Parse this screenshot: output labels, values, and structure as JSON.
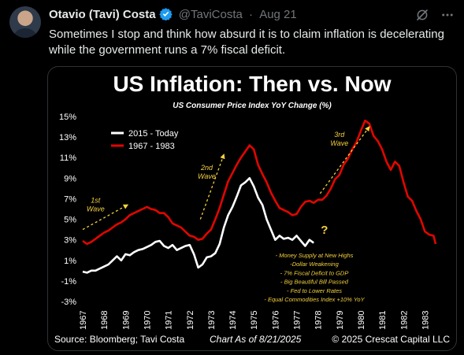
{
  "tweet": {
    "author_name": "Otavio (Tavi) Costa",
    "handle": "@TaviCosta",
    "separator": "·",
    "date": "Aug 21",
    "text": "Sometimes I stop and think how absurd it is to claim inflation is decelerating while the government runs a 7% fiscal deficit."
  },
  "colors": {
    "background": "#000000",
    "accent_blue": "#1d9bf0",
    "muted": "#71767b",
    "series_red": "#e10600",
    "series_white": "#ffffff",
    "annotation_yellow": "#f4d03f"
  },
  "icons": [
    "verified-badge-icon",
    "grok-icon",
    "more-icon"
  ],
  "chart_data": {
    "type": "line",
    "title": "US Inflation: Then vs. Now",
    "subtitle": "US Consumer Price Index YoY Change (%)",
    "y_tick_labels": [
      "15%",
      "13%",
      "11%",
      "9%",
      "7%",
      "5%",
      "3%",
      "1%",
      "-1%",
      "-3%"
    ],
    "ylim": [
      -3,
      15
    ],
    "x_tick_labels": [
      "1967",
      "1968",
      "1969",
      "1970",
      "1971",
      "1972",
      "1973",
      "1974",
      "1975",
      "1976",
      "1977",
      "1978",
      "1979",
      "1980",
      "1981",
      "1982",
      "1983"
    ],
    "xlim": [
      1967,
      1983.5
    ],
    "grid": false,
    "legend_position": "top-left",
    "series": [
      {
        "name": "1967 - 1983",
        "color": "#e10600",
        "points": [
          [
            1967.0,
            2.9
          ],
          [
            1967.2,
            2.6
          ],
          [
            1967.4,
            2.8
          ],
          [
            1967.6,
            3.1
          ],
          [
            1967.8,
            3.4
          ],
          [
            1968.0,
            3.7
          ],
          [
            1968.2,
            3.9
          ],
          [
            1968.4,
            4.2
          ],
          [
            1968.6,
            4.5
          ],
          [
            1968.8,
            4.7
          ],
          [
            1969.0,
            5.0
          ],
          [
            1969.2,
            5.4
          ],
          [
            1969.4,
            5.6
          ],
          [
            1969.6,
            5.8
          ],
          [
            1969.8,
            6.0
          ],
          [
            1970.0,
            6.2
          ],
          [
            1970.2,
            6.0
          ],
          [
            1970.4,
            5.9
          ],
          [
            1970.6,
            5.6
          ],
          [
            1970.8,
            5.6
          ],
          [
            1971.0,
            5.2
          ],
          [
            1971.2,
            4.6
          ],
          [
            1971.4,
            4.4
          ],
          [
            1971.6,
            4.2
          ],
          [
            1971.8,
            3.8
          ],
          [
            1972.0,
            3.4
          ],
          [
            1972.2,
            3.3
          ],
          [
            1972.4,
            3.0
          ],
          [
            1972.6,
            3.1
          ],
          [
            1972.8,
            3.6
          ],
          [
            1973.0,
            4.0
          ],
          [
            1973.2,
            5.0
          ],
          [
            1973.4,
            6.1
          ],
          [
            1973.6,
            7.4
          ],
          [
            1973.8,
            8.7
          ],
          [
            1974.0,
            9.5
          ],
          [
            1974.2,
            10.3
          ],
          [
            1974.4,
            11.0
          ],
          [
            1974.6,
            11.6
          ],
          [
            1974.8,
            12.2
          ],
          [
            1975.0,
            11.8
          ],
          [
            1975.2,
            10.3
          ],
          [
            1975.4,
            9.4
          ],
          [
            1975.6,
            8.6
          ],
          [
            1975.8,
            7.6
          ],
          [
            1976.0,
            6.8
          ],
          [
            1976.2,
            6.1
          ],
          [
            1976.4,
            5.9
          ],
          [
            1976.6,
            5.7
          ],
          [
            1976.8,
            5.4
          ],
          [
            1977.0,
            5.5
          ],
          [
            1977.2,
            6.2
          ],
          [
            1977.4,
            6.7
          ],
          [
            1977.6,
            6.8
          ],
          [
            1977.8,
            6.6
          ],
          [
            1978.0,
            6.9
          ],
          [
            1978.2,
            6.9
          ],
          [
            1978.4,
            7.3
          ],
          [
            1978.6,
            8.0
          ],
          [
            1978.8,
            8.9
          ],
          [
            1979.0,
            9.3
          ],
          [
            1979.2,
            10.3
          ],
          [
            1979.4,
            10.9
          ],
          [
            1979.6,
            11.8
          ],
          [
            1979.8,
            12.5
          ],
          [
            1980.0,
            13.6
          ],
          [
            1980.2,
            14.6
          ],
          [
            1980.4,
            14.3
          ],
          [
            1980.6,
            13.1
          ],
          [
            1980.8,
            12.6
          ],
          [
            1981.0,
            11.8
          ],
          [
            1981.2,
            10.6
          ],
          [
            1981.4,
            9.8
          ],
          [
            1981.6,
            10.6
          ],
          [
            1981.8,
            10.2
          ],
          [
            1982.0,
            8.6
          ],
          [
            1982.2,
            7.2
          ],
          [
            1982.4,
            6.8
          ],
          [
            1982.6,
            5.8
          ],
          [
            1982.8,
            5.0
          ],
          [
            1983.0,
            3.8
          ],
          [
            1983.2,
            3.5
          ],
          [
            1983.4,
            3.4
          ],
          [
            1983.5,
            2.6
          ]
        ]
      },
      {
        "name": "2015 - Today",
        "color": "#ffffff",
        "points": [
          [
            1967.0,
            -0.1
          ],
          [
            1967.2,
            -0.2
          ],
          [
            1967.4,
            0.0
          ],
          [
            1967.6,
            0.0
          ],
          [
            1967.8,
            0.2
          ],
          [
            1968.0,
            0.4
          ],
          [
            1968.2,
            0.6
          ],
          [
            1968.4,
            1.0
          ],
          [
            1968.6,
            1.4
          ],
          [
            1968.8,
            1.0
          ],
          [
            1969.0,
            1.6
          ],
          [
            1969.2,
            1.5
          ],
          [
            1969.4,
            1.8
          ],
          [
            1969.6,
            2.0
          ],
          [
            1969.8,
            2.1
          ],
          [
            1970.0,
            2.3
          ],
          [
            1970.2,
            2.5
          ],
          [
            1970.4,
            2.8
          ],
          [
            1970.6,
            2.9
          ],
          [
            1970.8,
            2.4
          ],
          [
            1971.0,
            2.2
          ],
          [
            1971.2,
            2.5
          ],
          [
            1971.4,
            2.0
          ],
          [
            1971.6,
            2.2
          ],
          [
            1971.8,
            2.4
          ],
          [
            1972.0,
            2.5
          ],
          [
            1972.2,
            1.6
          ],
          [
            1972.4,
            0.3
          ],
          [
            1972.6,
            0.6
          ],
          [
            1972.8,
            1.3
          ],
          [
            1973.0,
            1.4
          ],
          [
            1973.2,
            1.7
          ],
          [
            1973.4,
            2.6
          ],
          [
            1973.6,
            4.2
          ],
          [
            1973.8,
            5.4
          ],
          [
            1974.0,
            6.2
          ],
          [
            1974.2,
            7.2
          ],
          [
            1974.4,
            8.3
          ],
          [
            1974.6,
            8.6
          ],
          [
            1974.8,
            9.0
          ],
          [
            1975.0,
            8.2
          ],
          [
            1975.2,
            7.1
          ],
          [
            1975.4,
            6.4
          ],
          [
            1975.6,
            5.0
          ],
          [
            1975.8,
            4.0
          ],
          [
            1976.0,
            3.0
          ],
          [
            1976.2,
            3.4
          ],
          [
            1976.4,
            3.1
          ],
          [
            1976.6,
            3.2
          ],
          [
            1976.8,
            3.0
          ],
          [
            1977.0,
            3.4
          ],
          [
            1977.2,
            2.9
          ],
          [
            1977.4,
            2.4
          ],
          [
            1977.6,
            3.0
          ],
          [
            1977.8,
            2.7
          ]
        ]
      }
    ],
    "annotations": [
      {
        "lines": [
          "1st",
          "Wave"
        ],
        "x": 1967.6,
        "y": 6.6
      },
      {
        "lines": [
          "2nd",
          "Wave"
        ],
        "x": 1972.8,
        "y": 9.8
      },
      {
        "lines": [
          "3rd",
          "Wave"
        ],
        "x": 1979.0,
        "y": 13.0
      },
      {
        "lines": [
          "?"
        ],
        "x": 1978.3,
        "y": 3.6
      }
    ],
    "wave_arrows": [
      {
        "from": [
          1967.0,
          4.0
        ],
        "to": [
          1969.1,
          6.4
        ]
      },
      {
        "from": [
          1972.5,
          5.0
        ],
        "to": [
          1973.6,
          11.3
        ]
      },
      {
        "from": [
          1978.1,
          7.5
        ],
        "to": [
          1980.4,
          14.0
        ]
      }
    ],
    "notes": [
      "- Money Supply at New Highs",
      "-Dollar Weakening",
      "- 7% Fiscal Deficit to GDP",
      "- Big Beautiful Bill Passed",
      "- Fed to Lower Rates",
      "- Equal Commodities Index +10% YoY"
    ],
    "footer": {
      "source": "Source: Bloomberg; Tavi Costa",
      "as_of": "Chart As of 8/21/2025",
      "copyright": "© 2025 Crescat Capital LLC"
    }
  }
}
